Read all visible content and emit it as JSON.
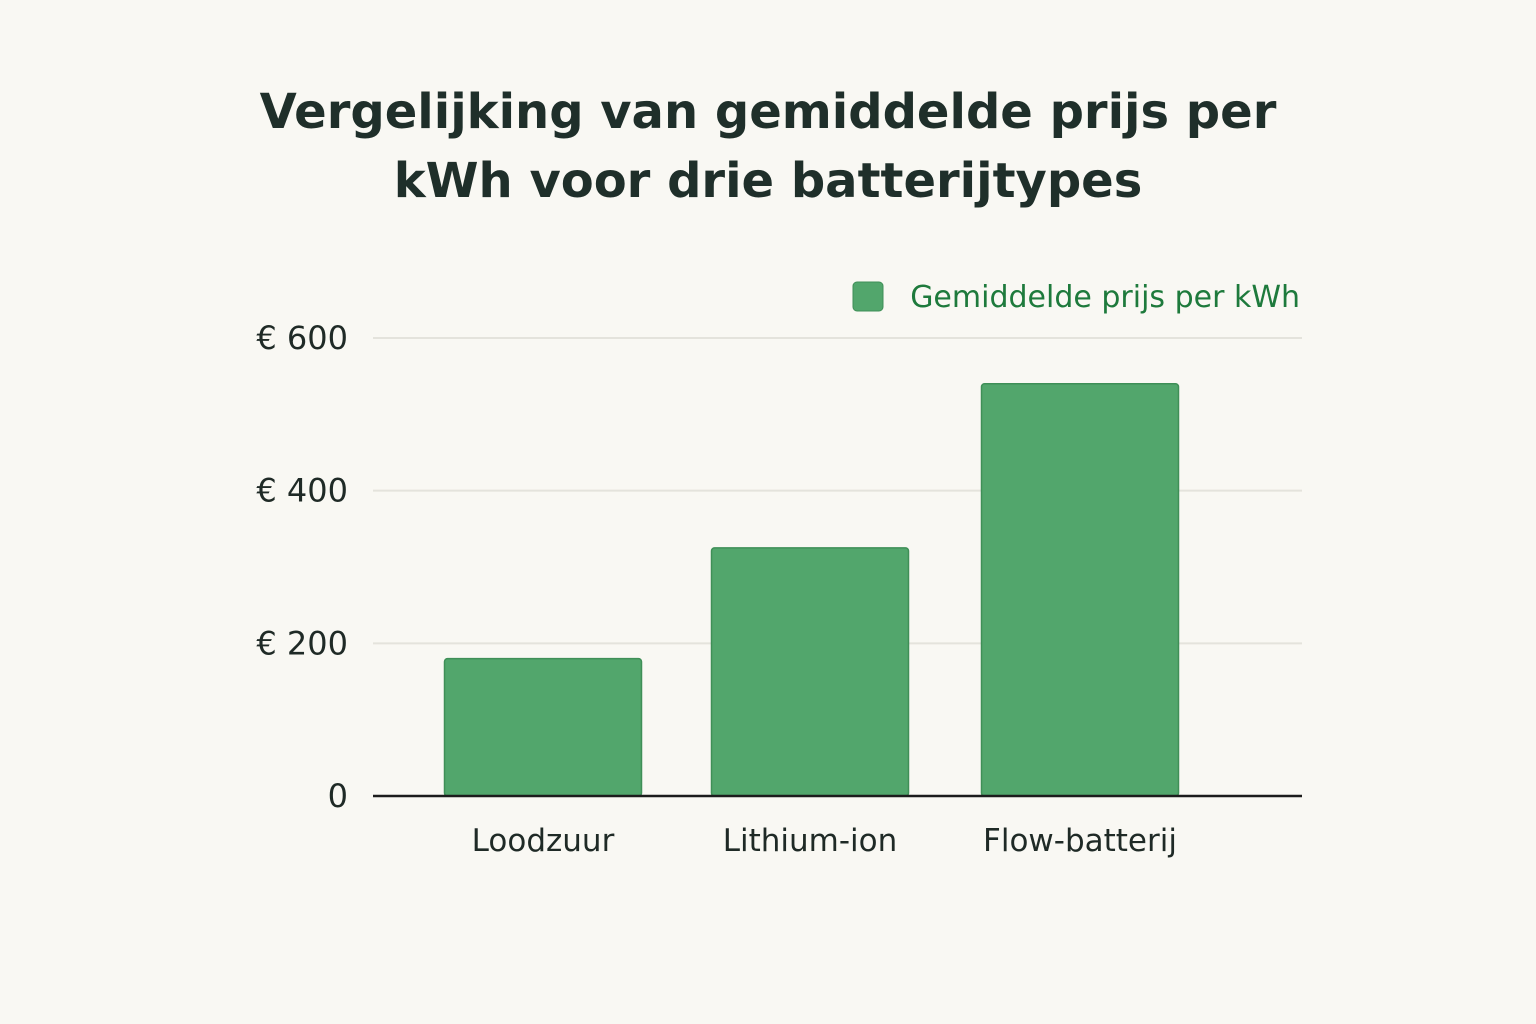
{
  "chart_data": {
    "type": "bar",
    "title_lines": [
      "Vergelijking van gemiddelde prijs per",
      "kWh voor drie batterijtypes"
    ],
    "categories": [
      "Loodzuur",
      "Lithium-ion",
      "Flow-batterij"
    ],
    "series": [
      {
        "name": "Gemiddelde prijs per kWh",
        "values": [
          180,
          325,
          540
        ]
      }
    ],
    "ylim": [
      0,
      600
    ],
    "yticks": [
      0,
      200,
      400,
      600
    ],
    "ytick_labels": [
      "0",
      "€ 200",
      "€ 400",
      "€ 600"
    ],
    "grid": true,
    "legend_position": "top-right",
    "colors": {
      "bar": "#52a66c",
      "bar_edge": "#3f8f57",
      "legend_text": "#1e7a3c",
      "grid": "#e4e3dc",
      "axis": "#1c1c1c",
      "title": "#1f2f2a"
    }
  }
}
